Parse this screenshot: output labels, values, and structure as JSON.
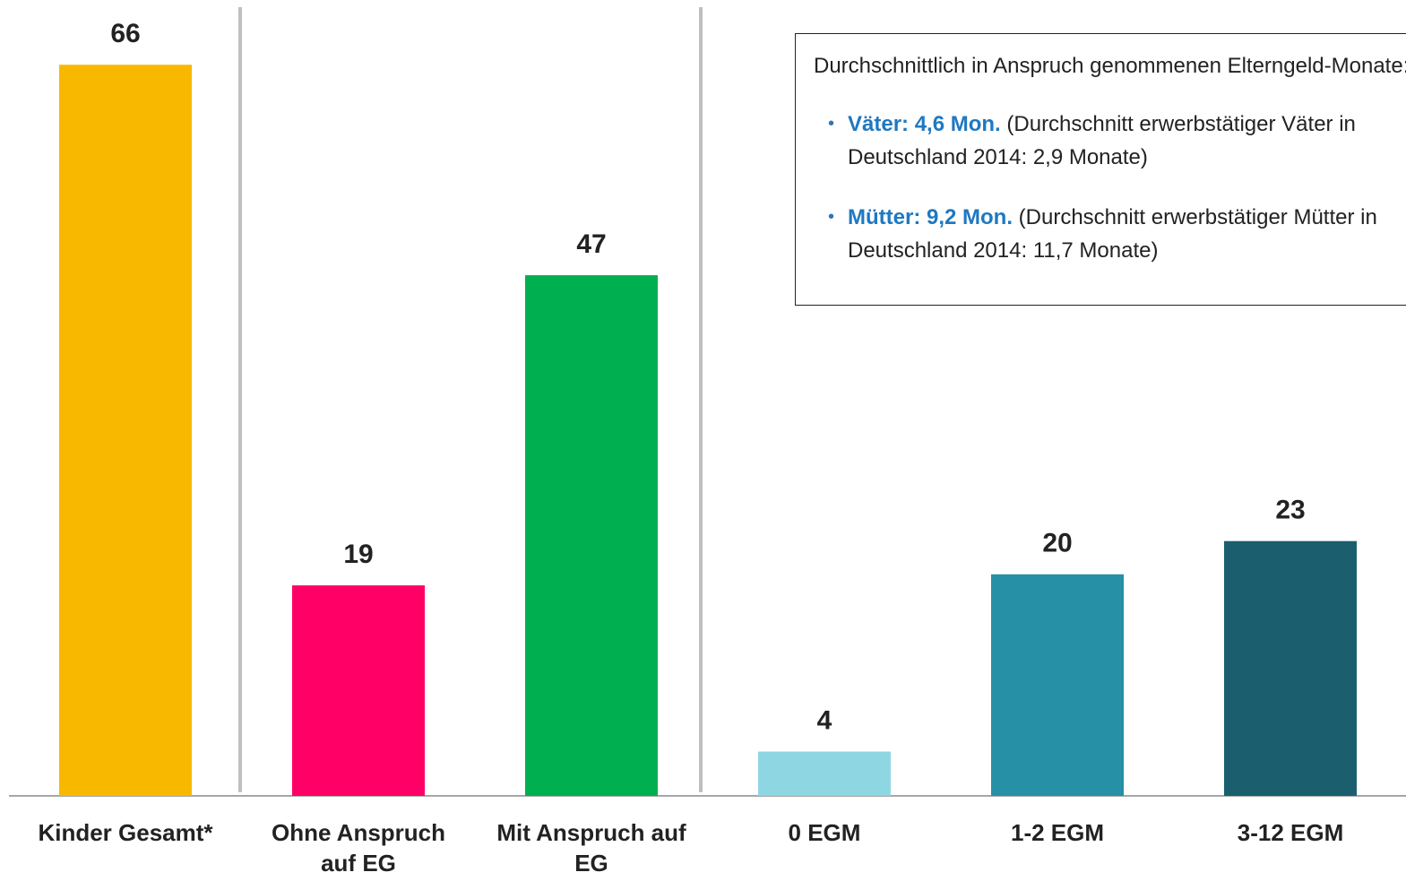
{
  "chart_data": {
    "type": "bar",
    "categories": [
      "Kinder Gesamt*",
      "Ohne Anspruch auf EG",
      "Mit Anspruch auf EG",
      "0 EGM",
      "1-2 EGM",
      "3-12 EGM"
    ],
    "values": [
      66,
      19,
      47,
      4,
      20,
      23
    ],
    "colors": [
      "#f9b800",
      "#ff0066",
      "#00b050",
      "#8fd6e3",
      "#2690a6",
      "#1b5f6e"
    ],
    "note": {
      "intro": "Durchschnittlich in Anspruch genommenen Elterngeld-Monate:",
      "items": [
        {
          "highlight": "Väter: 4,6 Mon.",
          "text": "(Durchschnitt  erwerbstätiger Väter in Deutschland 2014: 2,9 Monate)"
        },
        {
          "highlight": "Mütter: 9,2 Mon.",
          "text": "(Durchschnitt erwerbstätiger Mütter in Deutschland 2014: 11,7 Monate)"
        }
      ]
    }
  }
}
